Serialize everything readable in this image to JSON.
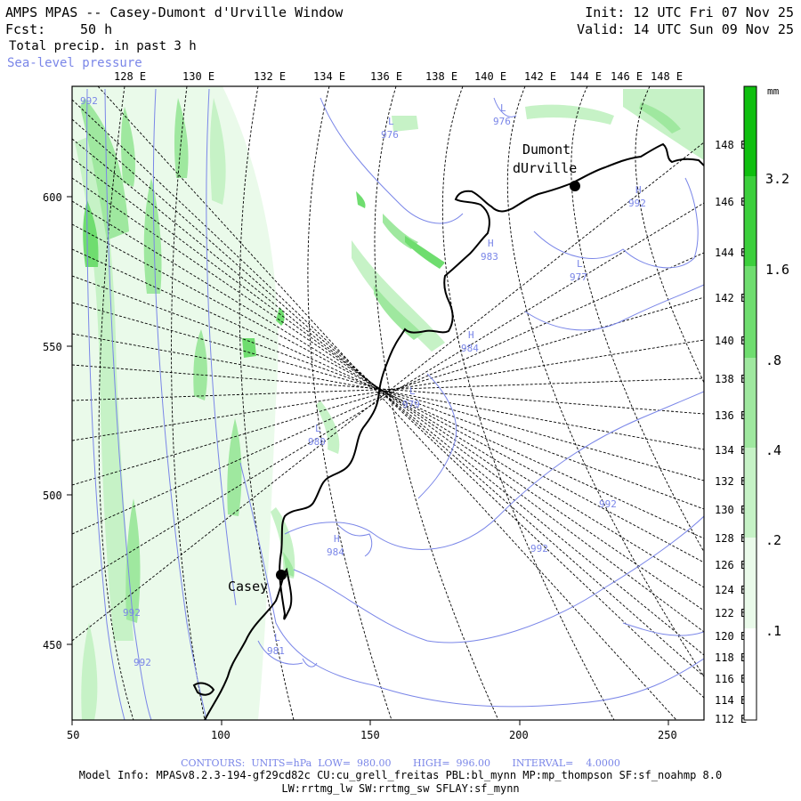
{
  "header": {
    "title": "AMPS MPAS -- Casey-Dumont d'Urville Window",
    "forecast_label": "Fcst:",
    "forecast_value": "50 h",
    "field": "Total precip. in past 3 h",
    "overlay": "Sea-level pressure",
    "init": "Init: 12 UTC Fri 07 Nov 25",
    "valid": "Valid: 14 UTC Sun 09 Nov 25"
  },
  "map": {
    "top_lon_labels": [
      "128 E",
      "130 E",
      "132 E",
      "134 E",
      "136 E",
      "138 E",
      "140 E",
      "142 E",
      "144 E",
      "146 E",
      "148 E"
    ],
    "right_lon_labels": [
      "148 E",
      "146 E",
      "144 E",
      "142 E",
      "140 E",
      "138 E",
      "136 E",
      "134 E",
      "132 E",
      "130 E",
      "128 E",
      "126 E",
      "124 E",
      "122 E",
      "120 E",
      "118 E",
      "116 E",
      "114 E",
      "112 E"
    ],
    "x_axis_ticks": [
      "50",
      "100",
      "150",
      "200",
      "250"
    ],
    "y_axis_ticks": [
      "600",
      "550",
      "500",
      "450"
    ],
    "stations": [
      {
        "name": "Casey"
      },
      {
        "name_line1": "Dumont",
        "name_line2": "dUrville"
      }
    ],
    "pressure_centers": [
      {
        "type": "L",
        "value": "976"
      },
      {
        "type": "L",
        "value": "976"
      },
      {
        "type": "H",
        "value": "992"
      },
      {
        "type": "H",
        "value": "983"
      },
      {
        "type": "L",
        "value": "977"
      },
      {
        "type": "H",
        "value": "984"
      },
      {
        "type": "L",
        "value": "979"
      },
      {
        "type": "L",
        "value": "980"
      },
      {
        "type": "H",
        "value": "984"
      },
      {
        "type": "L",
        "value": "981"
      }
    ],
    "contour_labels": [
      "992",
      "992",
      "992",
      "992",
      "992"
    ],
    "colors": {
      "contour": "#7a86e8",
      "coast": "#000000",
      "grid": "#000000",
      "precip_0_1": "#eafaea",
      "precip_0_2": "#c6f2c6",
      "precip_0_4": "#9fe89f",
      "precip_0_8": "#6fdd6f",
      "precip_1_6": "#3ccf3c",
      "precip_3_2": "#0fbf0f"
    }
  },
  "legend": {
    "unit": "mm",
    "levels": [
      "3.2",
      "1.6",
      ".8",
      ".4",
      ".2",
      ".1"
    ]
  },
  "footer": {
    "contours": "CONTOURS:  UNITS=hPa  LOW=  980.00       HIGH=  996.00       INTERVAL=    4.0000",
    "model_info": "Model Info: MPASv8.2.3-194-gf29cd82c CU:cu_grell_freitas PBL:bl_mynn MP:mp_thompson SF:sf_noahmp 8.0",
    "model_info2": "LW:rrtmg_lw SW:rrtmg_sw SFLAY:sf_mynn"
  }
}
